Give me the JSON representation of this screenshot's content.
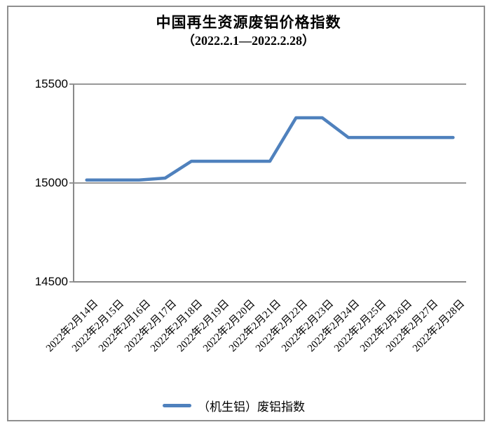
{
  "chart_data": {
    "type": "line",
    "title": "中国再生资源废铝价格指数",
    "subtitle": "（2022.2.1—2022.2.28）",
    "categories": [
      "2022年2月14日",
      "2022年2月15日",
      "2022年2月16日",
      "2022年2月17日",
      "2022年2月18日",
      "2022年2月19日",
      "2022年2月20日",
      "2022年2月21日",
      "2022年2月22日",
      "2022年2月23日",
      "2022年2月24日",
      "2022年2月25日",
      "2022年2月26日",
      "2022年2月27日",
      "2022年2月28日"
    ],
    "series": [
      {
        "name": "（机生铝）废铝指数",
        "color": "#4F81BD",
        "values": [
          15015,
          15015,
          15015,
          15025,
          15110,
          15110,
          15110,
          15110,
          15330,
          15330,
          15230,
          15230,
          15230,
          15230,
          15230
        ]
      }
    ],
    "ylim": [
      14500,
      15500
    ],
    "yticks": [
      14500,
      15000,
      15500
    ],
    "grid": true,
    "legend_position": "bottom",
    "axis_color": "#898989",
    "border_color": "#8f8f8f"
  }
}
